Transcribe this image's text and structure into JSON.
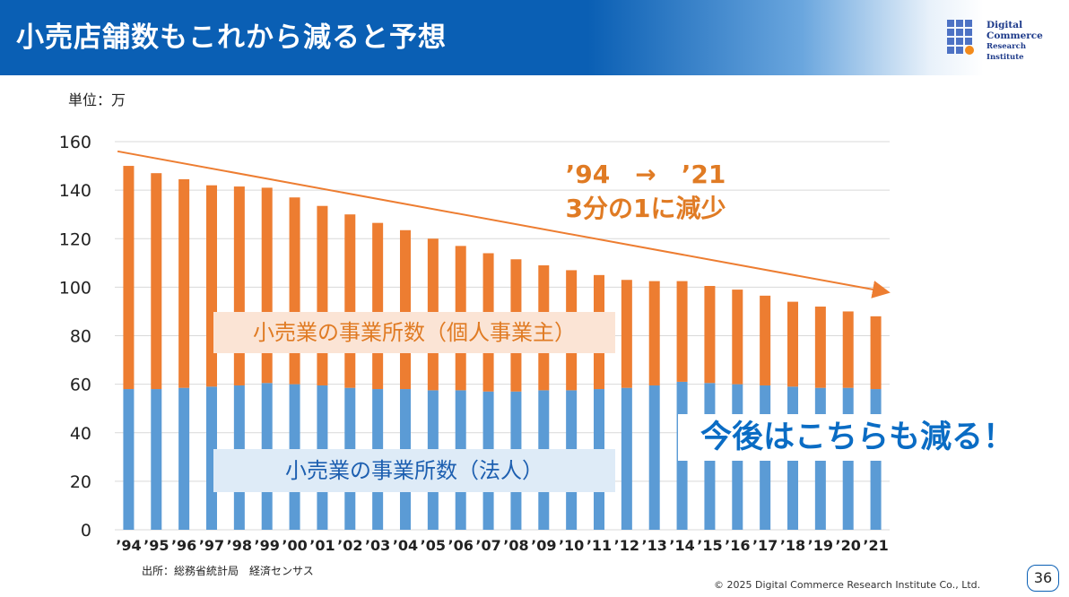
{
  "header": {
    "title": "小売店舗数もこれから減ると予想",
    "logo_lines": [
      "Digital",
      "Commerce",
      "Research Institute"
    ]
  },
  "unit_label": "単位：万",
  "source": "出所：総務省統計局　経済センサス",
  "copyright": "© 2025 Digital Commerce Research Institute Co., Ltd.",
  "page_number": "36",
  "annotations": {
    "ratio_line1": "’94　→　’21",
    "ratio_line2": "3分の1に減少",
    "decrease_note": "今後はこちらも減る！"
  },
  "colors": {
    "header_blue": "#0a5fb4",
    "corporate_blue": "#5b9bd5",
    "private_orange": "#ed7d31",
    "arrow_orange": "#ed7d31"
  },
  "chart_data": {
    "type": "bar",
    "stacked": true,
    "categories": [
      "’94",
      "’95",
      "’96",
      "’97",
      "’98",
      "’99",
      "’00",
      "’01",
      "’02",
      "’03",
      "’04",
      "’05",
      "’06",
      "’07",
      "’08",
      "’09",
      "’10",
      "’11",
      "’12",
      "’13",
      "’14",
      "’15",
      "’16",
      "’17",
      "’18",
      "’19",
      "’20",
      "’21"
    ],
    "series": [
      {
        "name": "小売業の事業所数（法人）",
        "color": "#5b9bd5",
        "values": [
          58,
          58,
          58.5,
          59,
          59.5,
          60.5,
          60,
          59.5,
          58.5,
          58,
          58,
          57.5,
          57.5,
          57,
          57,
          57.5,
          57.5,
          58,
          58.5,
          59.5,
          61,
          60.5,
          60,
          59.5,
          59,
          58.5,
          58.5,
          58
        ]
      },
      {
        "name": "小売業の事業所数（個人事業主）",
        "color": "#ed7d31",
        "values": [
          92,
          89,
          86,
          83,
          82,
          80.5,
          77,
          74,
          71.5,
          68.5,
          65.5,
          62.5,
          59.5,
          57,
          54.5,
          51.5,
          49.5,
          47,
          44.5,
          43,
          41.5,
          40,
          39,
          37,
          35,
          33.5,
          31.5,
          30
        ]
      }
    ],
    "totals": [
      150,
      147,
      144.5,
      142,
      141.5,
      141,
      137,
      133.5,
      130,
      126.5,
      123.5,
      120,
      117,
      114,
      111.5,
      109,
      107,
      105,
      103,
      102.5,
      102.5,
      100.5,
      99,
      96.5,
      94,
      92,
      90,
      88
    ],
    "ylim": [
      0,
      160
    ],
    "yticks": [
      0,
      20,
      40,
      60,
      80,
      100,
      120,
      140,
      160
    ],
    "ylabel": "単位：万",
    "grid": true,
    "legend": "none"
  }
}
